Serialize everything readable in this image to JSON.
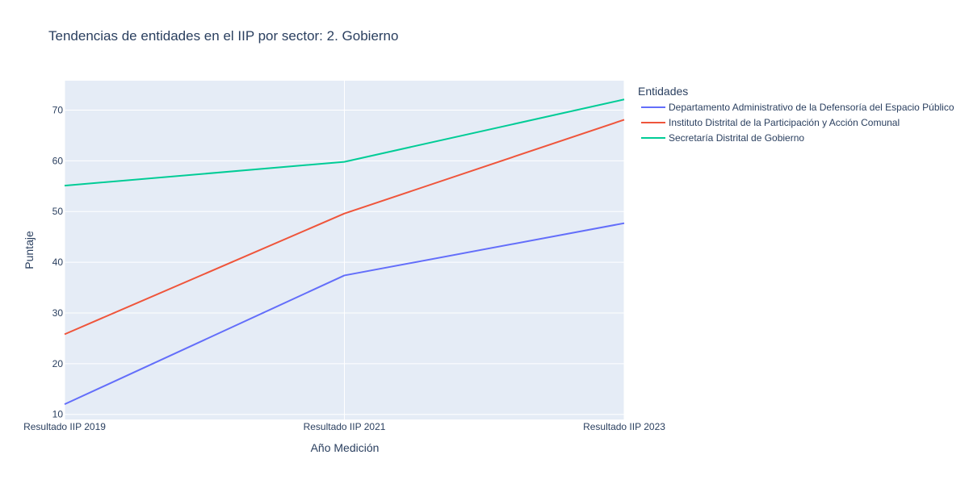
{
  "chart_data": {
    "type": "line",
    "title": "Tendencias de entidades en el IIP por sector: 2. Gobierno",
    "xlabel": "Año Medición",
    "ylabel": "Puntaje",
    "categories": [
      "Resultado IIP 2019",
      "Resultado IIP 2021",
      "Resultado IIP 2023"
    ],
    "ylim": [
      9,
      75.8
    ],
    "yticks": [
      10,
      20,
      30,
      40,
      50,
      60,
      70
    ],
    "grid": true,
    "legend": {
      "title": "Entidades",
      "placement": "right"
    },
    "series": [
      {
        "name": "Departamento Administrativo de la Defensoría del Espacio Público",
        "color": "#636efa",
        "values": [
          12.0,
          37.4,
          47.7
        ]
      },
      {
        "name": "Instituto Distrital de la Participación y Acción Comunal",
        "color": "#ef553b",
        "values": [
          25.8,
          49.6,
          68.1
        ]
      },
      {
        "name": "Secretaría Distrital de Gobierno",
        "color": "#00cc96",
        "values": [
          55.1,
          59.8,
          72.1
        ]
      }
    ],
    "colors": {
      "plot_bg": "#e5ecf6",
      "grid": "#ffffff",
      "text": "#2a3f5f"
    }
  }
}
